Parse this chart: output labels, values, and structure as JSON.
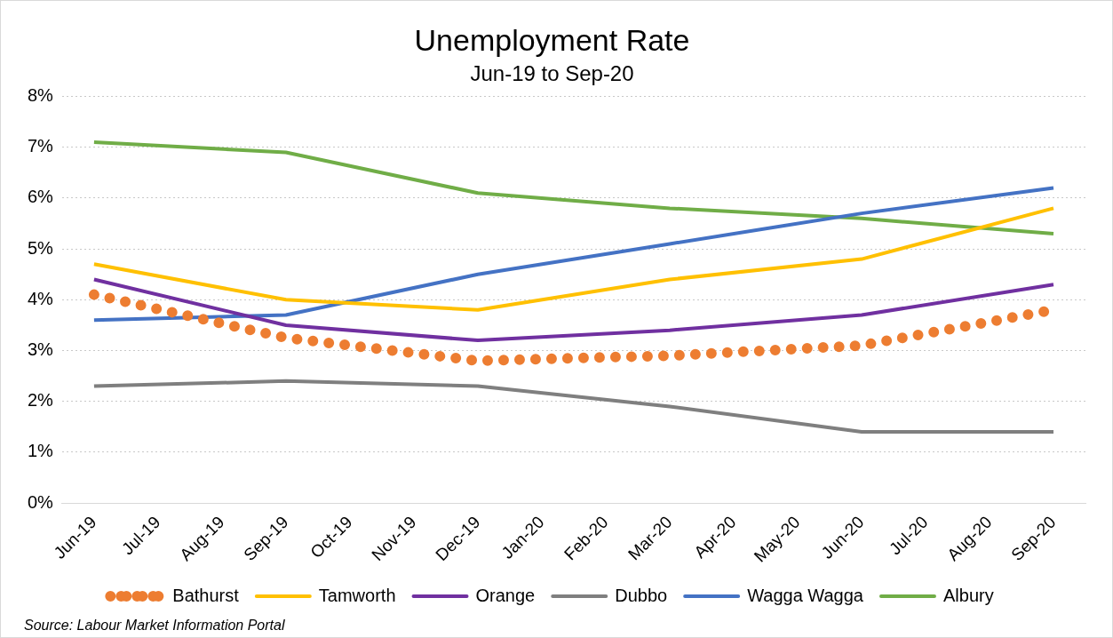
{
  "chart_data": {
    "type": "line",
    "title": "Unemployment Rate",
    "subtitle": "Jun-19 to Sep-20",
    "categories": [
      "Jun-19",
      "Jul-19",
      "Aug-19",
      "Sep-19",
      "Oct-19",
      "Nov-19",
      "Dec-19",
      "Jan-20",
      "Feb-20",
      "Mar-20",
      "Apr-20",
      "May-20",
      "Jun-20",
      "Jul-20",
      "Aug-20",
      "Sep-20"
    ],
    "series": [
      {
        "name": "Bathurst",
        "color": "#ed7d31",
        "line_style": "dotted",
        "x": [
          "Jun-19",
          "Sep-19",
          "Dec-19",
          "Mar-20",
          "Jun-20",
          "Sep-20"
        ],
        "values": [
          4.1,
          3.25,
          2.8,
          2.9,
          3.1,
          3.8
        ]
      },
      {
        "name": "Tamworth",
        "color": "#ffc000",
        "line_style": "solid",
        "x": [
          "Jun-19",
          "Sep-19",
          "Dec-19",
          "Mar-20",
          "Jun-20",
          "Sep-20"
        ],
        "values": [
          4.7,
          4.0,
          3.8,
          4.4,
          4.8,
          5.8
        ]
      },
      {
        "name": "Orange",
        "color": "#7030a0",
        "line_style": "solid",
        "x": [
          "Jun-19",
          "Sep-19",
          "Dec-19",
          "Mar-20",
          "Jun-20",
          "Sep-20"
        ],
        "values": [
          4.4,
          3.5,
          3.2,
          3.4,
          3.7,
          4.3
        ]
      },
      {
        "name": "Dubbo",
        "color": "#7f7f7f",
        "line_style": "solid",
        "x": [
          "Jun-19",
          "Sep-19",
          "Dec-19",
          "Mar-20",
          "Jun-20",
          "Sep-20"
        ],
        "values": [
          2.3,
          2.4,
          2.3,
          1.9,
          1.4,
          1.4
        ]
      },
      {
        "name": "Wagga Wagga",
        "color": "#4472c4",
        "line_style": "solid",
        "x": [
          "Jun-19",
          "Sep-19",
          "Dec-19",
          "Mar-20",
          "Jun-20",
          "Sep-20"
        ],
        "values": [
          3.6,
          3.7,
          4.5,
          5.1,
          5.7,
          6.2
        ]
      },
      {
        "name": "Albury",
        "color": "#70ad47",
        "line_style": "solid",
        "x": [
          "Jun-19",
          "Sep-19",
          "Dec-19",
          "Mar-20",
          "Jun-20",
          "Sep-20"
        ],
        "values": [
          7.1,
          6.9,
          6.1,
          5.8,
          5.6,
          5.3
        ]
      }
    ],
    "ylim": [
      0,
      8
    ],
    "yticks": [
      {
        "value": 0,
        "label": "0%"
      },
      {
        "value": 1,
        "label": "1%"
      },
      {
        "value": 2,
        "label": "2%"
      },
      {
        "value": 3,
        "label": "3%"
      },
      {
        "value": 4,
        "label": "4%"
      },
      {
        "value": 5,
        "label": "5%"
      },
      {
        "value": 6,
        "label": "6%"
      },
      {
        "value": 7,
        "label": "7%"
      },
      {
        "value": 8,
        "label": "8%"
      }
    ],
    "grid": "y",
    "legend": "bottom",
    "marker": "none",
    "annotations": [
      "Source: Labour Market Information Portal"
    ]
  }
}
